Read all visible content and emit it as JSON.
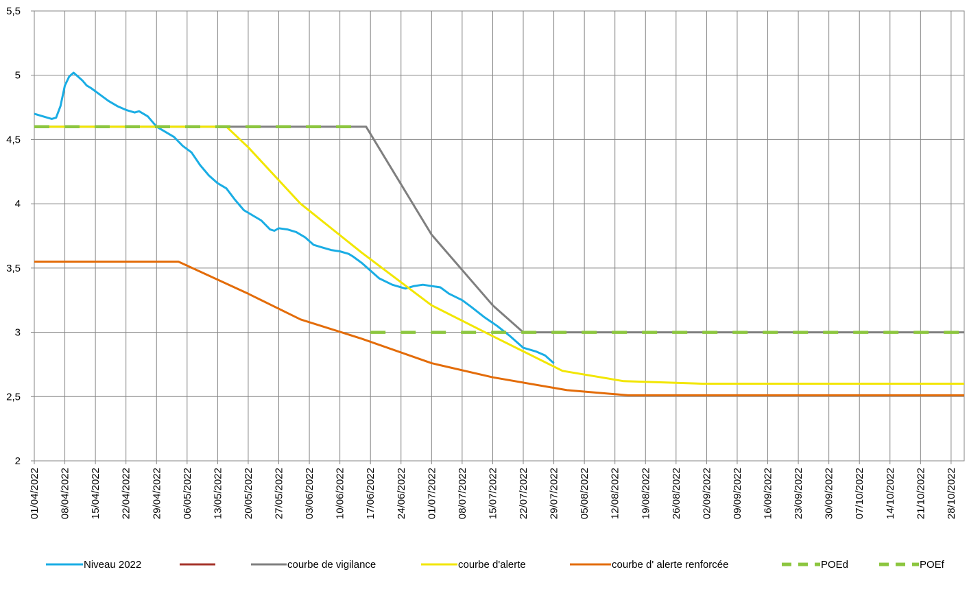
{
  "chart_data": {
    "type": "line",
    "title": "",
    "xlabel": "",
    "ylabel": "",
    "ylim": [
      2,
      5.5
    ],
    "yticks": [
      "2",
      "2,5",
      "3",
      "3,5",
      "4",
      "4,5",
      "5",
      "5,5"
    ],
    "ytick_values": [
      2,
      2.5,
      3,
      3.5,
      4,
      4.5,
      5,
      5.5
    ],
    "xlim": [
      "2022-04-01",
      "2022-10-31"
    ],
    "xticks": [
      "01/04/2022",
      "08/04/2022",
      "15/04/2022",
      "22/04/2022",
      "29/04/2022",
      "06/05/2022",
      "13/05/2022",
      "20/05/2022",
      "27/05/2022",
      "03/06/2022",
      "10/06/2022",
      "17/06/2022",
      "24/06/2022",
      "01/07/2022",
      "08/07/2022",
      "15/07/2022",
      "22/07/2022",
      "29/07/2022",
      "05/08/2022",
      "12/08/2022",
      "19/08/2022",
      "26/08/2022",
      "02/09/2022",
      "09/09/2022",
      "16/09/2022",
      "23/09/2022",
      "30/09/2022",
      "07/10/2022",
      "14/10/2022",
      "21/10/2022",
      "28/10/2022"
    ],
    "grid": true,
    "legend_position": "bottom",
    "series": [
      {
        "name": "Niveau 2022",
        "color": "#1AADE4",
        "style": "solid",
        "points": [
          [
            "2022-04-01",
            4.7
          ],
          [
            "2022-04-03",
            4.68
          ],
          [
            "2022-04-05",
            4.66
          ],
          [
            "2022-04-06",
            4.67
          ],
          [
            "2022-04-07",
            4.76
          ],
          [
            "2022-04-08",
            4.92
          ],
          [
            "2022-04-09",
            4.99
          ],
          [
            "2022-04-10",
            5.02
          ],
          [
            "2022-04-11",
            4.99
          ],
          [
            "2022-04-12",
            4.96
          ],
          [
            "2022-04-13",
            4.92
          ],
          [
            "2022-04-14",
            4.9
          ],
          [
            "2022-04-16",
            4.85
          ],
          [
            "2022-04-18",
            4.8
          ],
          [
            "2022-04-20",
            4.76
          ],
          [
            "2022-04-22",
            4.73
          ],
          [
            "2022-04-24",
            4.71
          ],
          [
            "2022-04-25",
            4.72
          ],
          [
            "2022-04-27",
            4.68
          ],
          [
            "2022-04-29",
            4.6
          ],
          [
            "2022-05-01",
            4.56
          ],
          [
            "2022-05-03",
            4.52
          ],
          [
            "2022-05-05",
            4.45
          ],
          [
            "2022-05-07",
            4.4
          ],
          [
            "2022-05-09",
            4.3
          ],
          [
            "2022-05-11",
            4.22
          ],
          [
            "2022-05-13",
            4.16
          ],
          [
            "2022-05-15",
            4.12
          ],
          [
            "2022-05-17",
            4.03
          ],
          [
            "2022-05-19",
            3.95
          ],
          [
            "2022-05-21",
            3.91
          ],
          [
            "2022-05-23",
            3.87
          ],
          [
            "2022-05-25",
            3.8
          ],
          [
            "2022-05-26",
            3.79
          ],
          [
            "2022-05-27",
            3.81
          ],
          [
            "2022-05-29",
            3.8
          ],
          [
            "2022-05-31",
            3.78
          ],
          [
            "2022-06-02",
            3.74
          ],
          [
            "2022-06-04",
            3.68
          ],
          [
            "2022-06-06",
            3.66
          ],
          [
            "2022-06-08",
            3.64
          ],
          [
            "2022-06-10",
            3.63
          ],
          [
            "2022-06-12",
            3.61
          ],
          [
            "2022-06-13",
            3.59
          ],
          [
            "2022-06-15",
            3.54
          ],
          [
            "2022-06-17",
            3.48
          ],
          [
            "2022-06-19",
            3.42
          ],
          [
            "2022-06-22",
            3.37
          ],
          [
            "2022-06-25",
            3.34
          ],
          [
            "2022-06-27",
            3.36
          ],
          [
            "2022-06-29",
            3.37
          ],
          [
            "2022-07-03",
            3.35
          ],
          [
            "2022-07-05",
            3.3
          ],
          [
            "2022-07-08",
            3.25
          ],
          [
            "2022-07-10",
            3.2
          ],
          [
            "2022-07-13",
            3.12
          ],
          [
            "2022-07-16",
            3.05
          ],
          [
            "2022-07-19",
            2.97
          ],
          [
            "2022-07-22",
            2.88
          ],
          [
            "2022-07-25",
            2.85
          ],
          [
            "2022-07-27",
            2.82
          ],
          [
            "2022-07-29",
            2.76
          ]
        ]
      },
      {
        "name": "",
        "color": "#A5342B",
        "style": "solid",
        "points": []
      },
      {
        "name": "courbe de vigilance",
        "color": "#7F7F7F",
        "style": "solid",
        "points": [
          [
            "2022-04-01",
            4.6
          ],
          [
            "2022-06-16",
            4.6
          ],
          [
            "2022-07-01",
            3.76
          ],
          [
            "2022-07-15",
            3.21
          ],
          [
            "2022-07-22",
            3.0
          ],
          [
            "2022-10-31",
            3.0
          ]
        ]
      },
      {
        "name": "courbe d'alerte",
        "color": "#F2E600",
        "style": "solid",
        "points": [
          [
            "2022-04-01",
            4.6
          ],
          [
            "2022-05-15",
            4.6
          ],
          [
            "2022-05-20",
            4.44
          ],
          [
            "2022-06-01",
            4.0
          ],
          [
            "2022-06-15",
            3.62
          ],
          [
            "2022-07-01",
            3.21
          ],
          [
            "2022-07-15",
            2.97
          ],
          [
            "2022-07-31",
            2.7
          ],
          [
            "2022-08-14",
            2.62
          ],
          [
            "2022-09-01",
            2.6
          ],
          [
            "2022-10-31",
            2.6
          ]
        ]
      },
      {
        "name": "courbe d' alerte renforcée",
        "color": "#E36C09",
        "style": "solid",
        "points": [
          [
            "2022-04-01",
            3.55
          ],
          [
            "2022-05-04",
            3.55
          ],
          [
            "2022-05-20",
            3.3
          ],
          [
            "2022-06-01",
            3.1
          ],
          [
            "2022-06-15",
            2.95
          ],
          [
            "2022-07-01",
            2.76
          ],
          [
            "2022-07-15",
            2.65
          ],
          [
            "2022-08-01",
            2.55
          ],
          [
            "2022-08-15",
            2.51
          ],
          [
            "2022-10-31",
            2.51
          ]
        ]
      },
      {
        "name": "POEd",
        "color": "#8CC63F",
        "style": "dashed",
        "points": [
          [
            "2022-04-01",
            4.6
          ],
          [
            "2022-06-16",
            4.6
          ]
        ]
      },
      {
        "name": "POEf",
        "color": "#8CC63F",
        "style": "dashed",
        "points": [
          [
            "2022-06-17",
            3.0
          ],
          [
            "2022-10-31",
            3.0
          ]
        ]
      }
    ]
  }
}
